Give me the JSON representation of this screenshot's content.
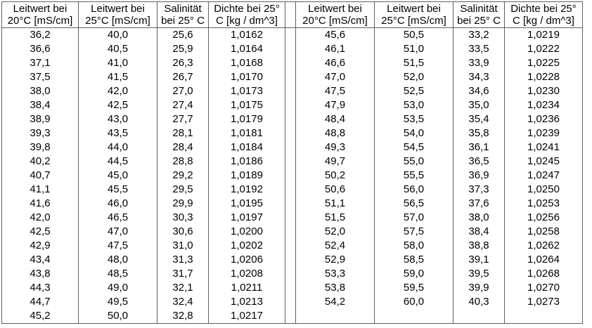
{
  "table": {
    "border_color": "#5f5f5f",
    "text_color": "#000000",
    "background_color": "#ffffff",
    "left": {
      "headers": [
        {
          "line1": "Leitwert bei",
          "line2": "20°C [mS/cm]"
        },
        {
          "line1": "Leitwert bei",
          "line2": "25°C [mS/cm]"
        },
        {
          "line1": "Salinität",
          "line2": "bei 25° C"
        },
        {
          "line1": "Dichte bei 25°",
          "line2": "C [kg / dm^3]"
        }
      ],
      "rows": [
        [
          "36,2",
          "40,0",
          "25,6",
          "1,0162"
        ],
        [
          "36,6",
          "40,5",
          "25,9",
          "1,0164"
        ],
        [
          "37,1",
          "41,0",
          "26,3",
          "1,0168"
        ],
        [
          "37,5",
          "41,5",
          "26,7",
          "1,0170"
        ],
        [
          "38,0",
          "42,0",
          "27,0",
          "1,0173"
        ],
        [
          "38,4",
          "42,5",
          "27,4",
          "1,0175"
        ],
        [
          "38,9",
          "43,0",
          "27,7",
          "1,0179"
        ],
        [
          "39,3",
          "43,5",
          "28,1",
          "1,0181"
        ],
        [
          "39,8",
          "44,0",
          "28,4",
          "1,0184"
        ],
        [
          "40,2",
          "44,5",
          "28,8",
          "1,0186"
        ],
        [
          "40,7",
          "45,0",
          "29,2",
          "1,0189"
        ],
        [
          "41,1",
          "45,5",
          "29,5",
          "1,0192"
        ],
        [
          "41,6",
          "46,0",
          "29,9",
          "1,0195"
        ],
        [
          "42,0",
          "46,5",
          "30,3",
          "1,0197"
        ],
        [
          "42,5",
          "47,0",
          "30,6",
          "1,0200"
        ],
        [
          "42,9",
          "47,5",
          "31,0",
          "1,0202"
        ],
        [
          "43,4",
          "48,0",
          "31,3",
          "1,0206"
        ],
        [
          "43,8",
          "48,5",
          "31,7",
          "1,0208"
        ],
        [
          "44,3",
          "49,0",
          "32,1",
          "1,0211"
        ],
        [
          "44,7",
          "49,5",
          "32,4",
          "1,0213"
        ],
        [
          "45,2",
          "50,0",
          "32,8",
          "1,0217"
        ]
      ]
    },
    "right": {
      "headers": [
        {
          "line1": "Leitwert bei",
          "line2": "20°C [mS/cm]"
        },
        {
          "line1": "Leitwert bei",
          "line2": "25°C [mS/cm]"
        },
        {
          "line1": "Salinität",
          "line2": "bei 25° C"
        },
        {
          "line1": "Dichte bei 25°",
          "line2": "C [kg / dm^3]"
        }
      ],
      "rows": [
        [
          "45,6",
          "50,5",
          "33,2",
          "1,0219"
        ],
        [
          "46,1",
          "51,0",
          "33,5",
          "1,0222"
        ],
        [
          "46,6",
          "51,5",
          "33,9",
          "1,0225"
        ],
        [
          "47,0",
          "52,0",
          "34,3",
          "1,0228"
        ],
        [
          "47,5",
          "52,5",
          "34,6",
          "1,0230"
        ],
        [
          "47,9",
          "53,0",
          "35,0",
          "1,0234"
        ],
        [
          "48,4",
          "53,5",
          "35,4",
          "1,0236"
        ],
        [
          "48,8",
          "54,0",
          "35,8",
          "1,0239"
        ],
        [
          "49,3",
          "54,5",
          "36,1",
          "1,0241"
        ],
        [
          "49,7",
          "55,0",
          "36,5",
          "1,0245"
        ],
        [
          "50,2",
          "55,5",
          "36,9",
          "1,0247"
        ],
        [
          "50,6",
          "56,0",
          "37,3",
          "1,0250"
        ],
        [
          "51,1",
          "56,5",
          "37,6",
          "1,0253"
        ],
        [
          "51,5",
          "57,0",
          "38,0",
          "1,0256"
        ],
        [
          "52,0",
          "57,5",
          "38,4",
          "1,0258"
        ],
        [
          "52,4",
          "58,0",
          "38,8",
          "1,0262"
        ],
        [
          "52,9",
          "58,5",
          "39,1",
          "1,0264"
        ],
        [
          "53,3",
          "59,0",
          "39,5",
          "1,0268"
        ],
        [
          "53,8",
          "59,5",
          "39,9",
          "1,0270"
        ],
        [
          "54,2",
          "60,0",
          "40,3",
          "1,0273"
        ]
      ]
    }
  }
}
